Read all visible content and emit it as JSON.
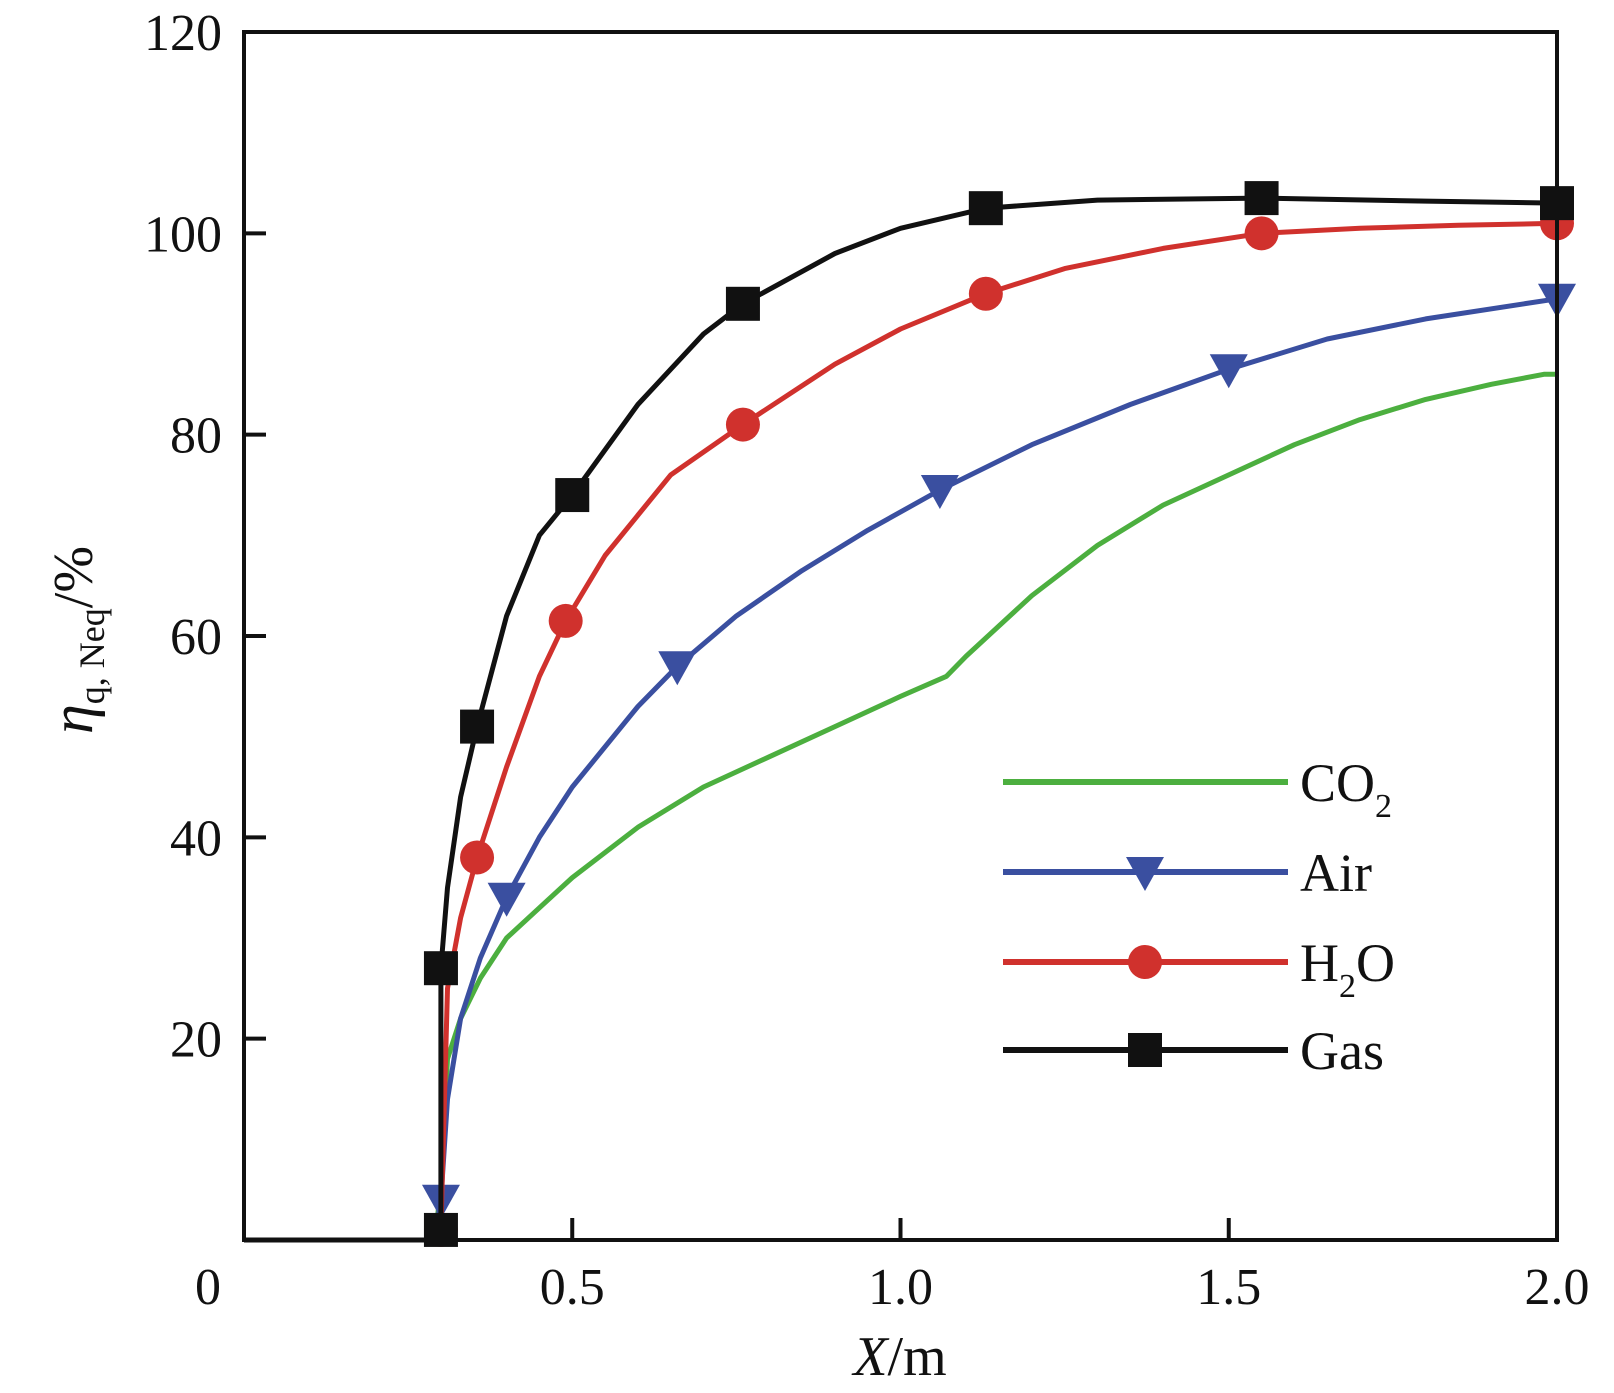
{
  "chart_data": {
    "type": "line",
    "xlabel_var": "X",
    "xlabel_unit": "/m",
    "ylabel_var": "η",
    "ylabel_sub": "q, Neq",
    "ylabel_unit": "/%",
    "xlim": [
      0,
      2.0
    ],
    "ylim": [
      0,
      120
    ],
    "x_ticks": [
      0,
      0.5,
      1.0,
      1.5,
      2.0
    ],
    "x_tick_labels": [
      "0",
      "0.5",
      "1.0",
      "1.5",
      "2.0"
    ],
    "y_ticks": [
      20,
      40,
      60,
      80,
      100,
      120
    ],
    "y_tick_labels": [
      "20",
      "40",
      "60",
      "80",
      "100",
      "120"
    ],
    "legend_position": "lower-right",
    "grid": false,
    "series": [
      {
        "name": "CO2",
        "name_main": "CO",
        "name_sub": "2",
        "name_tail": "",
        "color": "#4caf3f",
        "marker": "none",
        "x": [
          0,
          0.29,
          0.3,
          0.31,
          0.33,
          0.36,
          0.4,
          0.45,
          0.5,
          0.6,
          0.7,
          0.8,
          0.9,
          1.0,
          1.07,
          1.1,
          1.2,
          1.3,
          1.4,
          1.5,
          1.6,
          1.7,
          1.8,
          1.9,
          1.98,
          2.0
        ],
        "y": [
          0,
          0,
          5,
          18,
          22,
          26,
          30,
          33,
          36,
          41,
          45,
          48,
          51,
          54,
          56,
          58,
          64,
          69,
          73,
          76,
          79,
          81.5,
          83.5,
          85,
          86,
          86
        ]
      },
      {
        "name": "Air",
        "name_main": "Air",
        "name_sub": "",
        "name_tail": "",
        "color": "#3a4fa0",
        "marker": "triangle-down",
        "x": [
          0,
          0.29,
          0.3,
          0.31,
          0.33,
          0.36,
          0.4,
          0.45,
          0.5,
          0.6,
          0.66,
          0.75,
          0.85,
          0.95,
          1.06,
          1.2,
          1.35,
          1.5,
          1.65,
          1.8,
          1.95,
          2.0
        ],
        "y": [
          0,
          0,
          4,
          14,
          22,
          28,
          34,
          40,
          45,
          53,
          57,
          62,
          66.5,
          70.5,
          74.5,
          79,
          83,
          86.5,
          89.5,
          91.5,
          93,
          93.5
        ],
        "marker_x": [
          0.3,
          0.4,
          0.66,
          1.06,
          1.5,
          2.0
        ],
        "marker_y": [
          4,
          34,
          57,
          74.5,
          86.5,
          93.5
        ]
      },
      {
        "name": "H2O",
        "name_main": "H",
        "name_sub": "2",
        "name_tail": "O",
        "color": "#d0312d",
        "marker": "circle",
        "x": [
          0,
          0.29,
          0.3,
          0.31,
          0.33,
          0.355,
          0.4,
          0.45,
          0.49,
          0.55,
          0.65,
          0.76,
          0.9,
          1.0,
          1.13,
          1.25,
          1.4,
          1.55,
          1.7,
          1.85,
          2.0
        ],
        "y": [
          0,
          0,
          1,
          25,
          32,
          38,
          47,
          56,
          61.5,
          68,
          76,
          81,
          87,
          90.5,
          94,
          96.5,
          98.5,
          100,
          100.5,
          100.8,
          101
        ],
        "marker_x": [
          0.3,
          0.355,
          0.49,
          0.76,
          1.13,
          1.55,
          2.0
        ],
        "marker_y": [
          1,
          38,
          61.5,
          81,
          94,
          100,
          101
        ]
      },
      {
        "name": "Gas",
        "name_main": "Gas",
        "name_sub": "",
        "name_tail": "",
        "color": "#111111",
        "marker": "square",
        "x": [
          0,
          0.29,
          0.3,
          0.3,
          0.31,
          0.33,
          0.355,
          0.4,
          0.45,
          0.5,
          0.6,
          0.7,
          0.76,
          0.9,
          1.0,
          1.13,
          1.3,
          1.55,
          1.8,
          2.0
        ],
        "y": [
          0,
          0,
          1,
          27,
          35,
          44,
          51,
          62,
          70,
          74,
          83,
          90,
          93,
          98,
          100.5,
          102.5,
          103.3,
          103.5,
          103.2,
          103
        ],
        "marker_x": [
          0.3,
          0.3,
          0.355,
          0.5,
          0.76,
          1.13,
          1.55,
          2.0
        ],
        "marker_y": [
          1,
          27,
          51,
          74,
          93,
          102.5,
          103.5,
          103
        ]
      }
    ]
  }
}
